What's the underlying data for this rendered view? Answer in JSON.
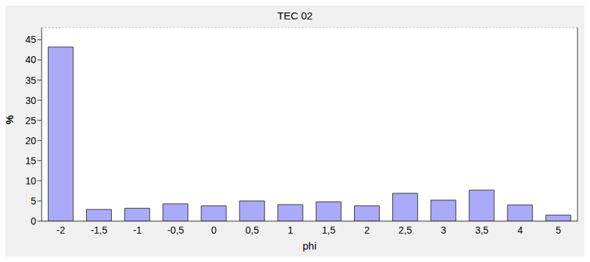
{
  "chart_data": {
    "type": "bar",
    "title": "TEC 02",
    "x_label": "phi",
    "y_label": "%",
    "categories": [
      "-2",
      "-1,5",
      "-1",
      "-0,5",
      "0",
      "0,5",
      "1",
      "1,5",
      "2",
      "2,5",
      "3",
      "3,5",
      "4",
      "5"
    ],
    "values": [
      43.2,
      2.9,
      3.2,
      4.3,
      3.8,
      5.0,
      4.1,
      4.8,
      3.8,
      6.9,
      5.2,
      7.7,
      4.0,
      1.5
    ],
    "color": "#aaaaf8",
    "ylim": [
      0,
      48
    ],
    "yticks": [
      0,
      5,
      10,
      15,
      20,
      25,
      30,
      35,
      40,
      45
    ],
    "grid": true
  }
}
